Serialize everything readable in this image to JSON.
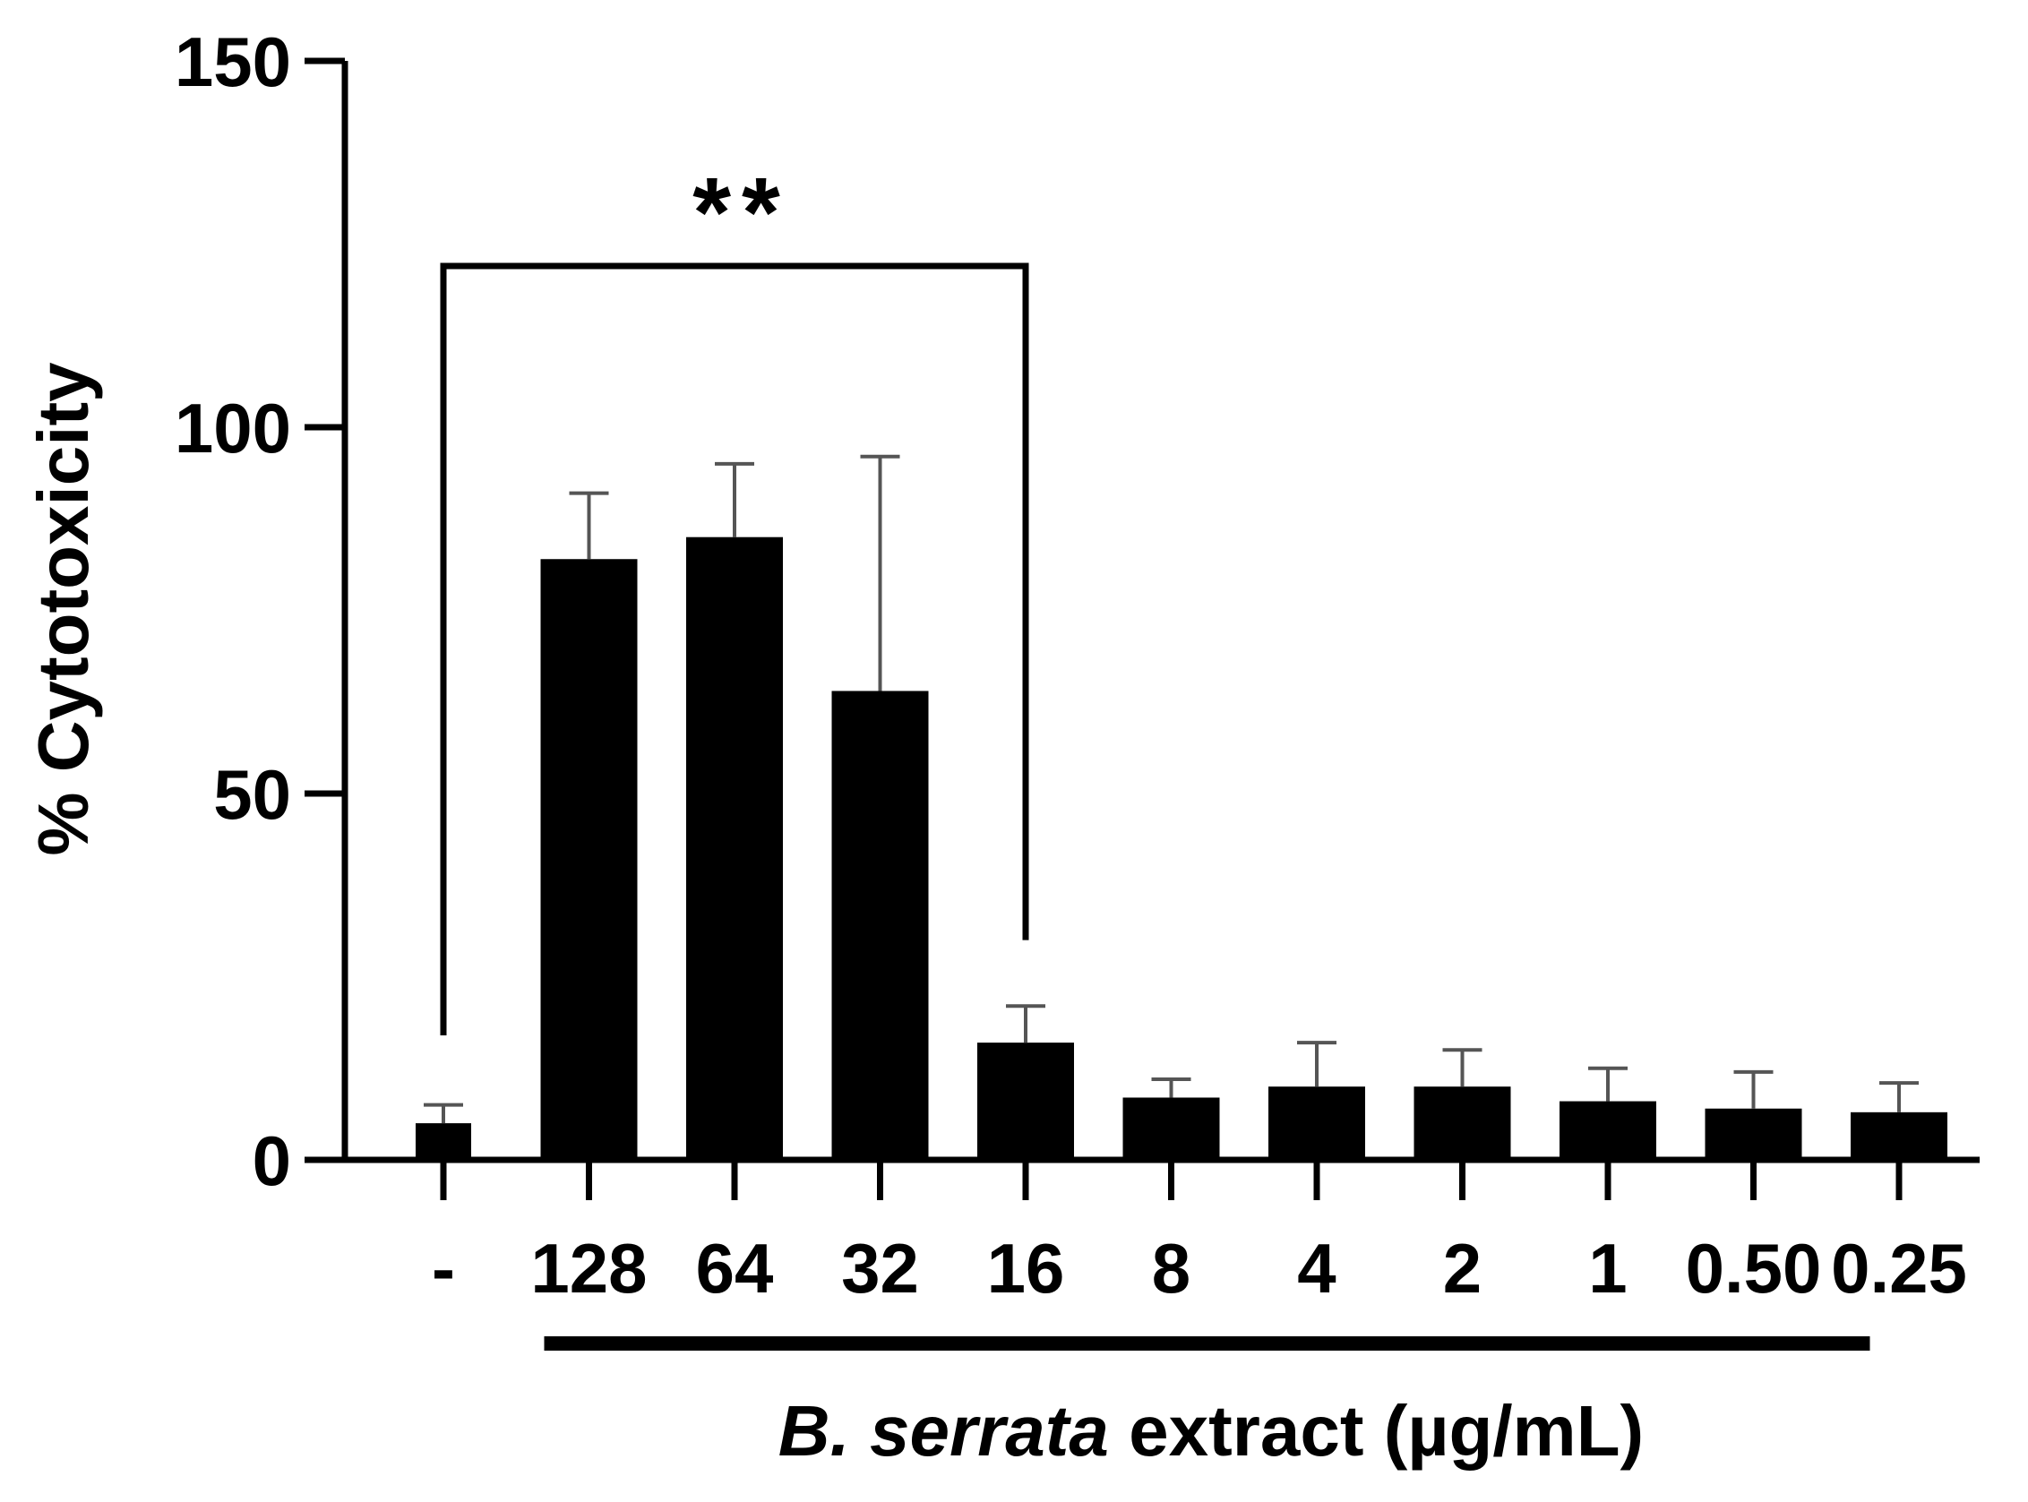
{
  "chart_data": {
    "type": "bar",
    "categories": [
      "-",
      "128",
      "64",
      "32",
      "16",
      "8",
      "4",
      "2",
      "1",
      "0.50",
      "0.25"
    ],
    "values": [
      5,
      82,
      85,
      64,
      16,
      8.5,
      10,
      10,
      8,
      7,
      6.5
    ],
    "error_upper": [
      7.5,
      91,
      95,
      96,
      21,
      11,
      16,
      15,
      12.5,
      12,
      10.5
    ],
    "ylabel": "% Cytotoxicity",
    "xlabel_italic": "B. serrata",
    "xlabel_rest": " extract (µg/mL)",
    "yticks": [
      0,
      50,
      100,
      150
    ],
    "ylim": [
      0,
      150
    ],
    "significance": {
      "label": "**",
      "from_category": "-",
      "to_category": "16",
      "bracket_y": 122,
      "left_leg_bottom": 17,
      "right_leg_bottom": 30
    },
    "group_bar": {
      "from_category": "128",
      "to_category": "0.50"
    },
    "bar_color": "#000000",
    "error_color": "#555555",
    "grid": false,
    "legend": "none"
  }
}
